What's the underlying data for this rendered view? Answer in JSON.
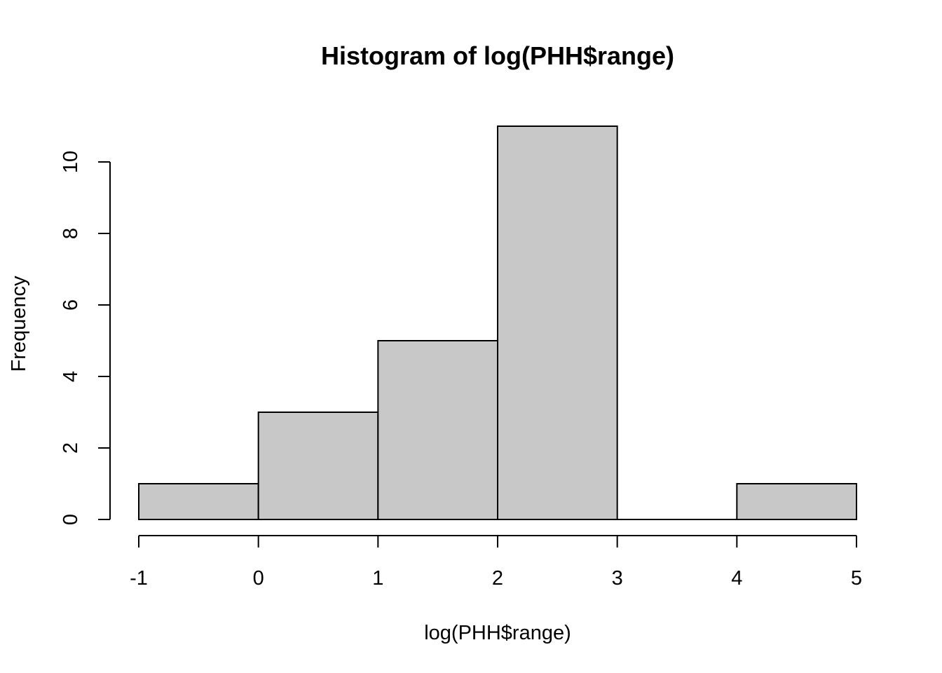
{
  "chart_data": {
    "type": "bar",
    "title": "Histogram of log(PHH$range)",
    "xlabel": "log(PHH$range)",
    "ylabel": "Frequency",
    "bins": [
      {
        "from": -1,
        "to": 0,
        "count": 1
      },
      {
        "from": 0,
        "to": 1,
        "count": 3
      },
      {
        "from": 1,
        "to": 2,
        "count": 5
      },
      {
        "from": 2,
        "to": 3,
        "count": 11
      },
      {
        "from": 3,
        "to": 4,
        "count": 0
      },
      {
        "from": 4,
        "to": 5,
        "count": 1
      }
    ],
    "x_ticks": [
      -1,
      0,
      1,
      2,
      3,
      4,
      5
    ],
    "y_ticks": [
      0,
      2,
      4,
      6,
      8,
      10
    ],
    "xlim": [
      -1,
      5
    ],
    "ylim": [
      0,
      11
    ],
    "grid": false,
    "bar_color": "#c8c8c8",
    "edge_color": "#000000"
  }
}
